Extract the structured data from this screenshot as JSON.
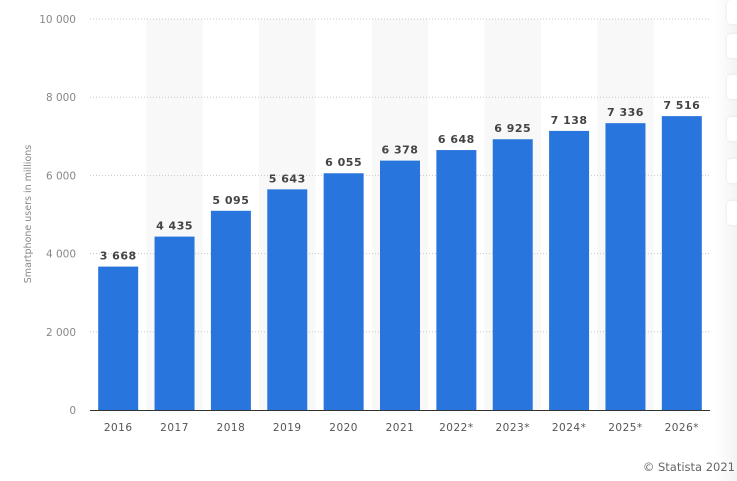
{
  "chart_data": {
    "type": "bar",
    "title": "",
    "xlabel": "",
    "ylabel": "Smartphone users in millions",
    "categories": [
      "2016",
      "2017",
      "2018",
      "2019",
      "2020",
      "2021",
      "2022*",
      "2023*",
      "2024*",
      "2025*",
      "2026*"
    ],
    "values": [
      3668,
      4435,
      5095,
      5643,
      6055,
      6378,
      6648,
      6925,
      7138,
      7336,
      7516
    ],
    "value_labels": [
      "3 668",
      "4 435",
      "5 095",
      "5 643",
      "6 055",
      "6 378",
      "6 648",
      "6 925",
      "7 138",
      "7 336",
      "7 516"
    ],
    "ylim": [
      0,
      10000
    ],
    "yticks": [
      0,
      2000,
      4000,
      6000,
      8000,
      10000
    ],
    "ytick_labels": [
      "0",
      "2 000",
      "4 000",
      "6 000",
      "8 000",
      "10 000"
    ],
    "grid": true,
    "bar_color": "#2876dd"
  },
  "footer": {
    "copyright": "© Statista 2021"
  }
}
